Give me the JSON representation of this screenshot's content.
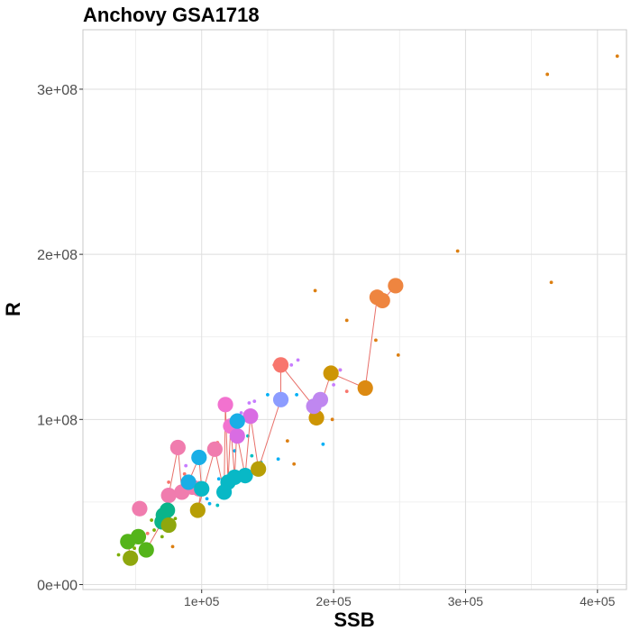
{
  "chart_data": {
    "type": "scatter",
    "title": "Anchovy GSA1718",
    "xlabel": "SSB",
    "ylabel": "R",
    "xlim": [
      10000,
      422000
    ],
    "ylim": [
      -3000000,
      336000000
    ],
    "x_ticks": [
      {
        "value": 100000,
        "label": "1e+05"
      },
      {
        "value": 200000,
        "label": "2e+05"
      },
      {
        "value": 300000,
        "label": "3e+05"
      },
      {
        "value": 400000,
        "label": "4e+05"
      }
    ],
    "y_ticks": [
      {
        "value": 0,
        "label": "0e+00"
      },
      {
        "value": 100000000,
        "label": "1e+08"
      },
      {
        "value": 200000000,
        "label": "2e+08"
      },
      {
        "value": 300000000,
        "label": "3e+08"
      }
    ],
    "x_minor_ticks": [
      50000,
      150000,
      250000,
      350000
    ],
    "y_minor_ticks": [
      50000000,
      150000000,
      250000000
    ],
    "grid": true,
    "legend": "none",
    "line_color": "#e8706a",
    "series": [
      {
        "color": "#f07cae",
        "values": [
          [
            53000,
            46000000
          ],
          [
            98000,
            58000000
          ],
          [
            75000,
            54000000
          ],
          [
            82000,
            83000000
          ],
          [
            110000,
            82000000
          ],
          [
            93000,
            59000000
          ],
          [
            85000,
            56000000
          ]
        ]
      },
      {
        "color": "#f272cf",
        "values": [
          [
            118000,
            109000000
          ],
          [
            122000,
            96000000
          ]
        ]
      },
      {
        "color": "#d96ce3",
        "values": [
          [
            137000,
            102000000
          ],
          [
            127000,
            90000000
          ]
        ]
      },
      {
        "color": "#19aee6",
        "values": [
          [
            127000,
            99000000
          ],
          [
            98000,
            77000000
          ],
          [
            90000,
            62000000
          ]
        ]
      },
      {
        "color": "#08b8c6",
        "values": [
          [
            125000,
            65000000
          ],
          [
            120000,
            62000000
          ],
          [
            117000,
            56000000
          ],
          [
            133000,
            66000000
          ],
          [
            100000,
            58000000
          ]
        ]
      },
      {
        "color": "#0ab48a",
        "values": [
          [
            70000,
            38000000
          ],
          [
            71000,
            42000000
          ],
          [
            74000,
            45000000
          ]
        ]
      },
      {
        "color": "#54b41a",
        "values": [
          [
            52000,
            29000000
          ],
          [
            44000,
            26000000
          ],
          [
            58000,
            21000000
          ]
        ]
      },
      {
        "color": "#8ea70e",
        "values": [
          [
            46000,
            16000000
          ],
          [
            75000,
            36000000
          ]
        ]
      },
      {
        "color": "#b79e05",
        "values": [
          [
            97000,
            45000000
          ],
          [
            143000,
            70000000
          ]
        ]
      },
      {
        "color": "#cd9504",
        "values": [
          [
            187000,
            101000000
          ],
          [
            198000,
            128000000
          ]
        ]
      },
      {
        "color": "#dc8a12",
        "values": [
          [
            224000,
            119000000
          ]
        ]
      },
      {
        "color": "#ee8540",
        "values": [
          [
            233000,
            174000000
          ],
          [
            237000,
            172000000
          ],
          [
            247000,
            181000000
          ]
        ]
      },
      {
        "color": "#f8766d",
        "values": [
          [
            160000,
            133000000
          ]
        ]
      },
      {
        "color": "#8c9cff",
        "values": [
          [
            160000,
            112000000
          ]
        ]
      },
      {
        "color": "#bf87f0",
        "values": [
          [
            185000,
            108000000
          ],
          [
            190000,
            112000000
          ]
        ]
      }
    ],
    "small_points": [
      {
        "color": "#dc7f11",
        "values": [
          [
            415000,
            320000000
          ],
          [
            362000,
            309000000
          ],
          [
            294000,
            202000000
          ],
          [
            365000,
            183000000
          ],
          [
            186000,
            178000000
          ],
          [
            210000,
            160000000
          ],
          [
            232000,
            148000000
          ],
          [
            249000,
            139000000
          ],
          [
            199000,
            100000000
          ],
          [
            170000,
            73000000
          ],
          [
            165000,
            87000000
          ],
          [
            145000,
            70000000
          ],
          [
            78000,
            23000000
          ]
        ]
      },
      {
        "color": "#f8766d",
        "values": [
          [
            155000,
            133000000
          ],
          [
            205000,
            130000000
          ],
          [
            210000,
            117000000
          ],
          [
            112000,
            86000000
          ],
          [
            87000,
            67000000
          ],
          [
            75000,
            62000000
          ],
          [
            52000,
            48000000
          ],
          [
            59000,
            31000000
          ]
        ]
      },
      {
        "color": "#c77cff",
        "values": [
          [
            173000,
            136000000
          ],
          [
            168000,
            133000000
          ],
          [
            205000,
            130000000
          ],
          [
            200000,
            121000000
          ],
          [
            140000,
            111000000
          ],
          [
            136000,
            110000000
          ],
          [
            130000,
            104000000
          ],
          [
            108000,
            81000000
          ],
          [
            100000,
            79000000
          ],
          [
            88000,
            72000000
          ],
          [
            93000,
            60000000
          ]
        ]
      },
      {
        "color": "#00b0f6",
        "values": [
          [
            150000,
            115000000
          ],
          [
            172000,
            115000000
          ],
          [
            192000,
            85000000
          ],
          [
            158000,
            76000000
          ],
          [
            125000,
            81000000
          ],
          [
            113000,
            64000000
          ],
          [
            104000,
            52000000
          ],
          [
            106000,
            49000000
          ]
        ]
      },
      {
        "color": "#7cae00",
        "values": [
          [
            62000,
            39000000
          ],
          [
            64000,
            33000000
          ],
          [
            37000,
            18000000
          ],
          [
            49000,
            22000000
          ],
          [
            70000,
            29000000
          ],
          [
            80000,
            40000000
          ],
          [
            100000,
            58000000
          ],
          [
            120000,
            56000000
          ],
          [
            88000,
            65000000
          ]
        ]
      },
      {
        "color": "#00bfc4",
        "values": [
          [
            135000,
            90000000
          ],
          [
            138000,
            78000000
          ],
          [
            145000,
            74000000
          ],
          [
            112000,
            48000000
          ],
          [
            78000,
            46000000
          ]
        ]
      }
    ],
    "trajectory": [
      [
        46000,
        16000000
      ],
      [
        44000,
        26000000
      ],
      [
        52000,
        29000000
      ],
      [
        58000,
        21000000
      ],
      [
        70000,
        38000000
      ],
      [
        71000,
        42000000
      ],
      [
        74000,
        45000000
      ],
      [
        75000,
        36000000
      ],
      [
        75000,
        54000000
      ],
      [
        82000,
        83000000
      ],
      [
        85000,
        56000000
      ],
      [
        93000,
        59000000
      ],
      [
        90000,
        62000000
      ],
      [
        98000,
        77000000
      ],
      [
        100000,
        58000000
      ],
      [
        97000,
        45000000
      ],
      [
        110000,
        82000000
      ],
      [
        117000,
        56000000
      ],
      [
        118000,
        109000000
      ],
      [
        120000,
        62000000
      ],
      [
        122000,
        96000000
      ],
      [
        125000,
        65000000
      ],
      [
        127000,
        99000000
      ],
      [
        127000,
        90000000
      ],
      [
        133000,
        66000000
      ],
      [
        137000,
        102000000
      ],
      [
        143000,
        70000000
      ],
      [
        160000,
        112000000
      ],
      [
        160000,
        133000000
      ],
      [
        185000,
        108000000
      ],
      [
        190000,
        112000000
      ],
      [
        187000,
        101000000
      ],
      [
        198000,
        128000000
      ],
      [
        224000,
        119000000
      ],
      [
        233000,
        174000000
      ],
      [
        237000,
        172000000
      ],
      [
        247000,
        181000000
      ]
    ]
  }
}
